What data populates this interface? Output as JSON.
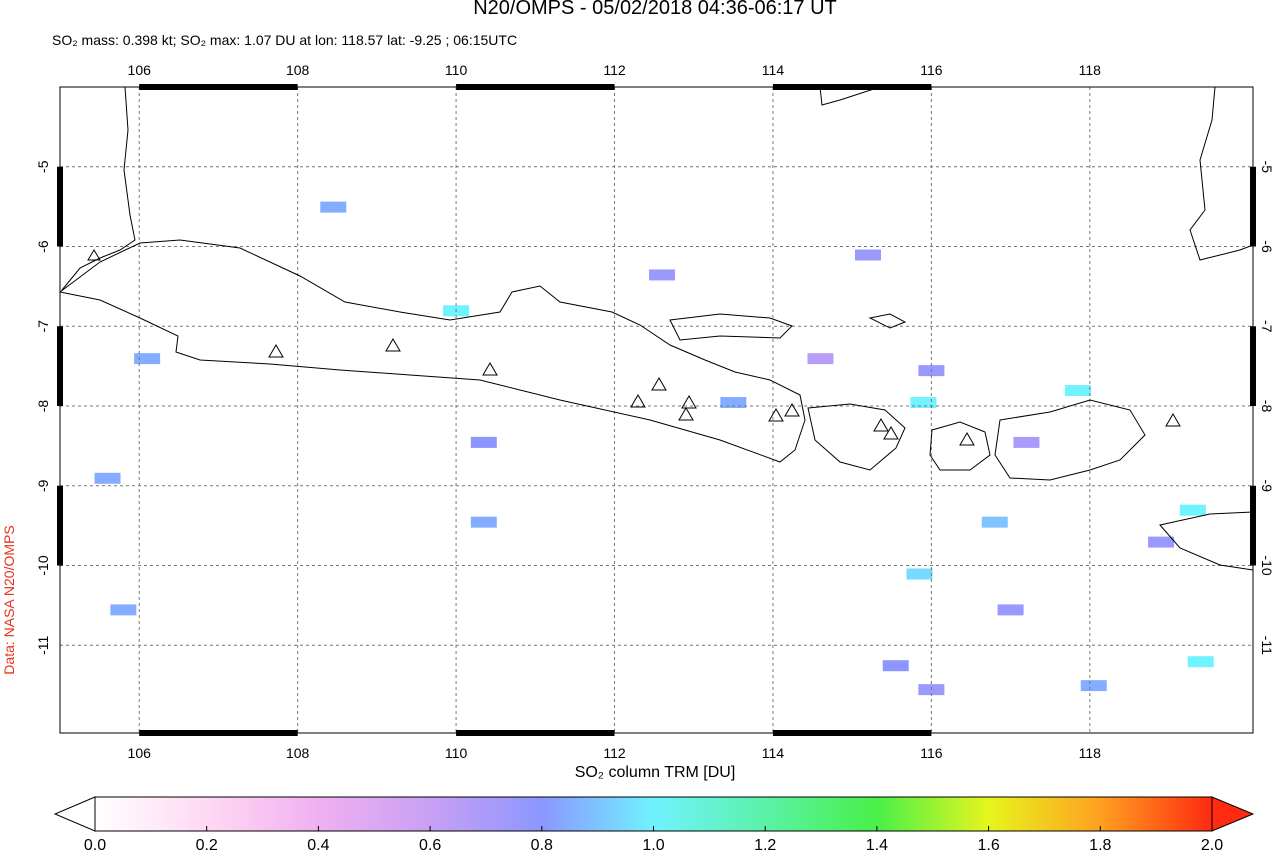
{
  "header": {
    "title": "N20/OMPS - 05/02/2018 04:36-06:17 UT",
    "subtitle": "SO₂ mass: 0.398 kt; SO₂ max: 1.07 DU at lon: 118.57 lat: -9.25 ; 06:15UTC"
  },
  "map": {
    "xlim": [
      105,
      120.06
    ],
    "ylim": [
      -12.1,
      -4
    ],
    "lon_ticks": [
      106,
      108,
      110,
      112,
      114,
      116,
      118
    ],
    "lat_ticks": [
      -5,
      -6,
      -7,
      -8,
      -9,
      -10,
      -11
    ],
    "pixels": [
      {
        "lon": 110.0,
        "lat": -6.8,
        "value": 1.0
      },
      {
        "lon": 115.9,
        "lat": -7.95,
        "value": 1.0
      },
      {
        "lon": 117.85,
        "lat": -7.8,
        "value": 1.0
      },
      {
        "lon": 119.3,
        "lat": -9.3,
        "value": 1.0
      },
      {
        "lon": 119.4,
        "lat": -11.2,
        "value": 1.0
      },
      {
        "lon": 115.85,
        "lat": -10.1,
        "value": 0.95
      },
      {
        "lon": 116.8,
        "lat": -9.45,
        "value": 0.9
      },
      {
        "lon": 108.45,
        "lat": -5.5,
        "value": 0.85
      },
      {
        "lon": 112.6,
        "lat": -6.35,
        "value": 0.75
      },
      {
        "lon": 115.55,
        "lat": -11.25,
        "value": 0.8
      },
      {
        "lon": 118.05,
        "lat": -11.5,
        "value": 0.85
      },
      {
        "lon": 115.2,
        "lat": -6.1,
        "value": 0.75
      },
      {
        "lon": 116.0,
        "lat": -7.55,
        "value": 0.75
      },
      {
        "lon": 113.5,
        "lat": -7.95,
        "value": 0.85
      },
      {
        "lon": 110.35,
        "lat": -8.45,
        "value": 0.8
      },
      {
        "lon": 110.35,
        "lat": -9.45,
        "value": 0.85
      },
      {
        "lon": 105.6,
        "lat": -8.9,
        "value": 0.85
      },
      {
        "lon": 105.8,
        "lat": -10.55,
        "value": 0.85
      },
      {
        "lon": 106.1,
        "lat": -7.4,
        "value": 0.85
      },
      {
        "lon": 117.0,
        "lat": -10.55,
        "value": 0.75
      },
      {
        "lon": 118.9,
        "lat": -9.7,
        "value": 0.75
      },
      {
        "lon": 116.0,
        "lat": -11.55,
        "value": 0.75
      },
      {
        "lon": 117.2,
        "lat": -8.45,
        "value": 0.7
      },
      {
        "lon": 114.6,
        "lat": -7.4,
        "value": 0.65
      }
    ]
  },
  "colorbar": {
    "label": "SO₂ column TRM [DU]",
    "range": [
      0,
      2
    ],
    "ticks": [
      {
        "value": 0,
        "label": "0.0"
      },
      {
        "value": 0.2,
        "label": "0.2"
      },
      {
        "value": 0.4,
        "label": "0.4"
      },
      {
        "value": 0.6,
        "label": "0.6"
      },
      {
        "value": 0.8,
        "label": "0.8"
      },
      {
        "value": 1,
        "label": "1.0"
      },
      {
        "value": 1.2,
        "label": "1.2"
      },
      {
        "value": 1.4,
        "label": "1.4"
      },
      {
        "value": 1.6,
        "label": "1.6"
      },
      {
        "value": 1.8,
        "label": "1.8"
      },
      {
        "value": 2,
        "label": "2.0"
      }
    ]
  },
  "credit": "Data: NASA N20/OMPS"
}
